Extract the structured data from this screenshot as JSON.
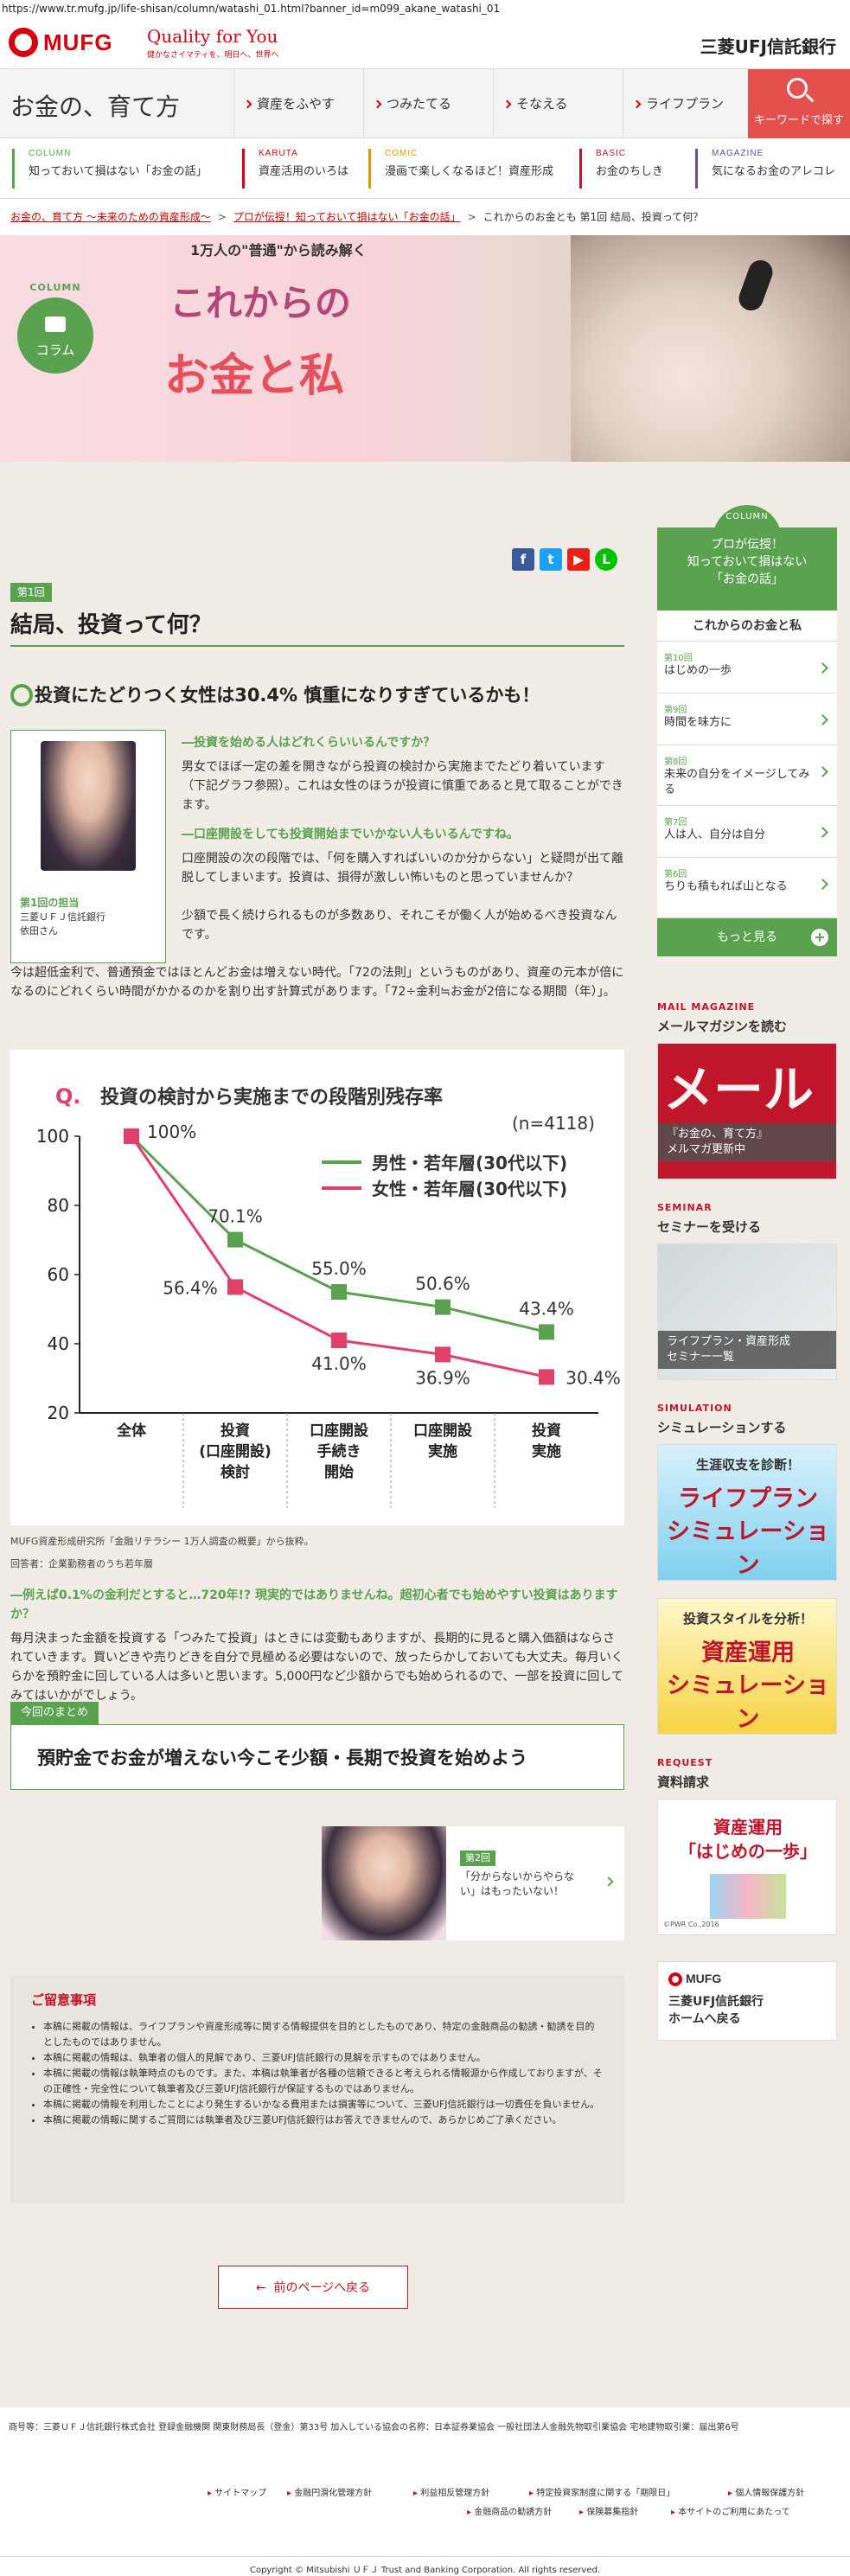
{
  "browser": {
    "url": "https://www.tr.mufg.jp/life-shisan/column/watashi_01.html?banner_id=m099_akane_watashi_01"
  },
  "header": {
    "logo": "MUFG",
    "tagline": "Quality for You",
    "tagline_sub": "健かなさイマティを、明日へ、世界へ",
    "bank": "三菱UFJ信託銀行"
  },
  "nav": {
    "site_title": "お金の、育て方",
    "items": [
      "資産をふやす",
      "つみたてる",
      "そなえる",
      "ライフプラン"
    ],
    "search_label": "キーワードで探す"
  },
  "subnav": [
    {
      "en": "COLUMN",
      "jp": "知っておいて損はない「お金の話」",
      "color": "#5aa24f"
    },
    {
      "en": "KARUTA",
      "jp": "資産活用のいろは",
      "color": "#d7000f"
    },
    {
      "en": "COMIC",
      "jp": "漫画で楽しくなるほど！資産形成",
      "color": "#e39b00"
    },
    {
      "en": "BASIC",
      "jp": "お金のちしき",
      "color": "#c0152a"
    },
    {
      "en": "MAGAZINE",
      "jp": "気になるお金のアレコレ",
      "color": "#6b4aa0"
    }
  ],
  "breadcrumb": {
    "items": [
      "お金の、育て方 〜未来のための資産形成〜",
      "プロが伝授！知っておいて損はない「お金の話」"
    ],
    "current": "これからのお金とも 第1回 結局、投資って何？"
  },
  "hero": {
    "badge_en": "COLUMN",
    "badge_jp": "コラム",
    "lead": "1万人の\"普通\"から読み解く",
    "title1": "これからの",
    "title2": "お金と私"
  },
  "article": {
    "episode": "第1回",
    "title": "結局、投資って何？",
    "section_title": "投資にたどりつく女性は30.4% 慎重になりすぎているかも！",
    "author": {
      "episode": "第1回の担当",
      "org": "三菱ＵＦＪ信託銀行",
      "name": "依田さん"
    },
    "q1": "―投資を始める人はどれくらいいるんですか？",
    "a1": "男女でほぼ一定の差を開きながら投資の検討から実施までたどり着いています（下記グラフ参照）。これは女性のほうが投資に慎重であると見て取ることができます。",
    "q2": "―口座開設をしても投資開始までいかない人もいるんですね。",
    "a2a": "口座開設の次の段階では、「何を購入すればいいのか分からない」と疑問が出て離脱してしまいます。投資は、損得が激しい怖いものと思っていませんか？",
    "a2b": "少額で長く続けられるものが多数あり、それこそが働く人が始めるべき投資なんです。",
    "a2c": "今は超低金利で、普通預金ではほとんどお金は増えない時代。「72の法則」というものがあり、資産の元本が倍になるのにどれくらい時間がかかるのかを割り出す計算式があります。「72÷金利≒お金が2倍になる期間（年）」。",
    "source": "MUFG資産形成研究所「金融リテラシー 1万人調査の概要」から抜粋。",
    "respondents": "回答者：企業勤務者のうち若年層",
    "q3": "―例えば0.1%の金利だとすると…720年!? 現実的ではありませんね。超初心者でも始めやすい投資はありますか？",
    "a3": "毎月決まった金額を投資する「つみたて投資」はときには変動もありますが、長期的に見ると購入価額はならされていきます。買いどきや売りどきを自分で見極める必要はないので、放ったらかしておいても大丈夫。毎月いくらかを預貯金に回している人は多いと思います。5,000円など少額からでも始められるので、一部を投資に回してみてはいかがでしょう。",
    "summary_tag": "今回のまとめ",
    "summary": "預貯金でお金が増えない今こそ少額・長期で投資を始めよう",
    "next_episode": "第2回",
    "next_title": "「分からないからやらない」はもったいない！"
  },
  "chart_data": {
    "type": "line",
    "title": "投資の検討から実施までの段階別残存率",
    "note": "(n=4118)",
    "q_mark": "Q.",
    "categories": [
      "全体",
      "投資\n(口座開設)\n検討",
      "口座開設\n手続き\n開始",
      "口座開設\n実施",
      "投資\n実施"
    ],
    "ylim": [
      20,
      100
    ],
    "yticks": [
      20,
      40,
      60,
      80,
      100
    ],
    "series": [
      {
        "name": "男性・若年層(30代以下)",
        "color": "#5aa24f",
        "values": [
          100,
          70.1,
          55.0,
          50.6,
          43.4
        ],
        "labels": [
          "100%",
          "70.1%",
          "55.0%",
          "50.6%",
          "43.4%"
        ]
      },
      {
        "name": "女性・若年層(30代以下)",
        "color": "#e0406a",
        "values": [
          100,
          56.4,
          41.0,
          36.9,
          30.4
        ],
        "labels": [
          "",
          "56.4%",
          "41.0%",
          "36.9%",
          "30.4%"
        ]
      }
    ]
  },
  "caution": {
    "title": "ご留意事項",
    "items": [
      "本稿に掲載の情報は、ライフプランや資産形成等に関する情報提供を目的としたものであり、特定の金融商品の勧誘・勧誘を目的としたものではありません。",
      "本稿に掲載の情報は、執筆者の個人的見解であり、三菱UFJ信託銀行の見解を示すものではありません。",
      "本稿に掲載の情報は執筆時点のものです。また、本稿は執筆者が各種の信頼できると考えられる情報源から作成しておりますが、その正確性・完全性について執筆者及び三菱UFJ信託銀行が保証するものではありません。",
      "本稿に掲載の情報を利用したことにより発生するいかなる費用または損害等について、三菱UFJ信託銀行は一切責任を負いません。",
      "本稿に掲載の情報に関するご質問には執筆者及び三菱UFJ信託銀行はお答えできませんので、あらかじめご了承ください。"
    ]
  },
  "back_button": "前のページへ戻る",
  "sidebar": {
    "column_en": "COLUMN",
    "column_title": "プロが伝授！\n知っておいて損はない\n「お金の話」",
    "list_head": "これからのお金と私",
    "items": [
      {
        "ep": "第10回",
        "title": "はじめの一歩"
      },
      {
        "ep": "第9回",
        "title": "時間を味方に"
      },
      {
        "ep": "第8回",
        "title": "未来の自分をイメージしてみる"
      },
      {
        "ep": "第7回",
        "title": "人は人、自分は自分"
      },
      {
        "ep": "第6回",
        "title": "ちりも積もれば山となる"
      }
    ],
    "more": "もっと見る",
    "mail_en": "MAIL MAGAZINE",
    "mail_jp": "メールマガジンを読む",
    "mail_big": "メール",
    "mail_strip": "『お金の、育て方』\nメルマガ更新中",
    "seminar_en": "SEMINAR",
    "seminar_jp": "セミナーを受ける",
    "seminar_strip": "ライフプラン・資産形成\nセミナー一覧",
    "sim_en": "SIMULATION",
    "sim_jp": "シミュレーションする",
    "sim1_t1": "生涯収支を診断！",
    "sim1_t2": "ライフプラン",
    "sim1_t3": "シミュレーション",
    "sim2_t1": "投資スタイルを分析！",
    "sim2_t2": "資産運用",
    "sim2_t3": "シミュレーション",
    "req_en": "REQUEST",
    "req_jp": "資料請求",
    "book1": "資産運用",
    "book2": "「はじめの一歩」",
    "book_note": "©PWR Co.,2016",
    "home_logo": "MUFG",
    "home_text": "三菱UFJ信託銀行\nホームへ戻る"
  },
  "footer": {
    "registration": "商号等：三菱ＵＦＪ信託銀行株式会社 登録金融機関 関東財務局長（登金）第33号 加入している協会の名称：日本証券業協会 一般社団法人金融先物取引業協会 宅地建物取引業：届出第6号",
    "links_row1": [
      "サイトマップ",
      "金融円滑化管理方針",
      "利益相反管理方針",
      "特定投資家制度に関する「期限日」",
      "個人情報保護方針"
    ],
    "links_row2": [
      "金融商品の勧誘方針",
      "保険募集指針",
      "本サイトのご利用にあたって"
    ],
    "copyright": "Copyright © Mitsubishi ＵＦＪ Trust and Banking Corporation. All rights reserved."
  }
}
